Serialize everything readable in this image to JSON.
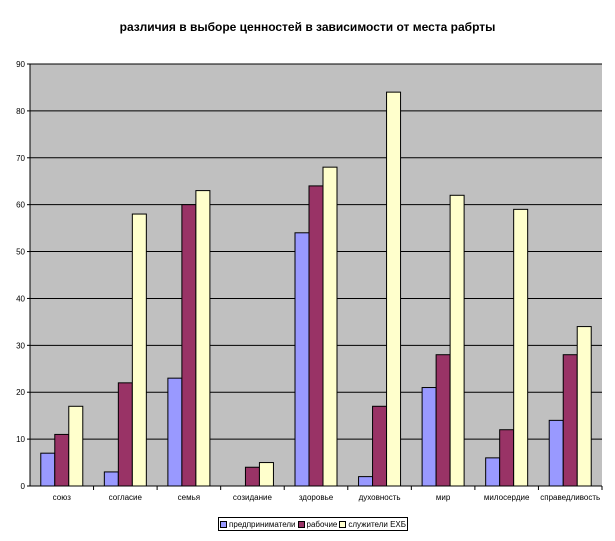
{
  "chart_data": {
    "type": "bar",
    "title": "различия в выборе ценностей в зависимости от места рабрты",
    "xlabel": "",
    "ylabel": "",
    "ylim": [
      0,
      90
    ],
    "yticks": [
      0,
      10,
      20,
      30,
      40,
      50,
      60,
      70,
      80,
      90
    ],
    "grid": true,
    "legend_position": "bottom",
    "plot_background": "#c0c0c0",
    "categories": [
      "союз",
      "согласие",
      "семья",
      "созидание",
      "здоровье",
      "духовность",
      "мир",
      "милосердие",
      "справедливость"
    ],
    "series": [
      {
        "name": "предприниматели",
        "color": "#9999ff",
        "values": [
          7,
          3,
          23,
          0,
          54,
          2,
          21,
          6,
          14
        ]
      },
      {
        "name": "рабочие",
        "color": "#993366",
        "values": [
          11,
          22,
          60,
          4,
          64,
          17,
          28,
          12,
          28
        ]
      },
      {
        "name": "служители ЕХБ",
        "color": "#ffffcc",
        "values": [
          17,
          58,
          63,
          5,
          68,
          84,
          62,
          59,
          34
        ]
      }
    ]
  }
}
